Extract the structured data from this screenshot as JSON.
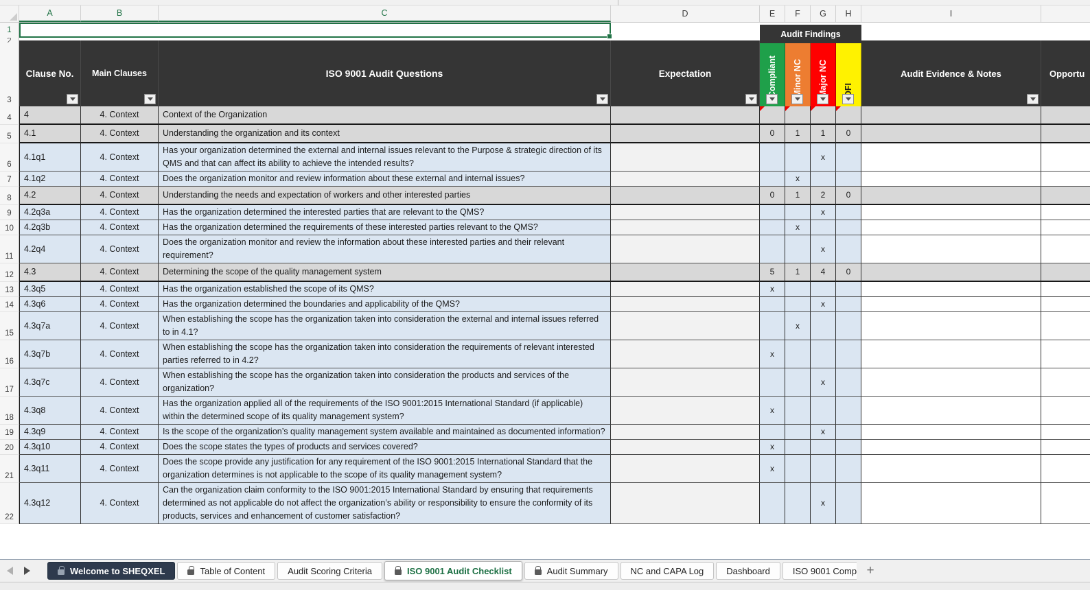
{
  "columns": {
    "letters": [
      "A",
      "B",
      "C",
      "D",
      "E",
      "F",
      "G",
      "H",
      "I"
    ],
    "selected_letters": [
      "A",
      "B",
      "C"
    ]
  },
  "gutter": {
    "row1": "1",
    "row2": "2",
    "row3": "3"
  },
  "header": {
    "clause_no": "Clause No.",
    "main_clauses": "Main Clauses",
    "questions": "ISO 9001 Audit Questions",
    "expectation": "Expectation",
    "audit_findings": "Audit Findings",
    "findings_cols": [
      {
        "label": "Compliant",
        "color": "#1FA04A",
        "text_color": "#ffffff"
      },
      {
        "label": "Minor NC",
        "color": "#ED7D31",
        "text_color": "#ffffff"
      },
      {
        "label": "Major NC",
        "color": "#FF0000",
        "text_color": "#ffffff"
      },
      {
        "label": "OFI",
        "color": "#FFF200",
        "text_color": "#1a1a1a"
      }
    ],
    "evidence": "Audit Evidence & Notes",
    "opportunity": "Opportu"
  },
  "colors": {
    "excel_green": "#217346",
    "header_bg": "#353535",
    "section_row_bg": "#d8d8d8",
    "question_row_bg": "#dbe6f2",
    "active_sheet_tab_bg": "#2e3a4d"
  },
  "rows": [
    {
      "n": "4",
      "type": "section",
      "clause": "4",
      "main": "4. Context",
      "text": "Context of the Organization",
      "e": "",
      "f": "",
      "g": "",
      "h": "",
      "marks": true
    },
    {
      "n": "5",
      "type": "section",
      "clause": "4.1",
      "main": "4. Context",
      "text": "Understanding the organization and its context",
      "e": "0",
      "f": "1",
      "g": "1",
      "h": "0"
    },
    {
      "n": "6",
      "type": "question",
      "clause": "4.1q1",
      "main": "4. Context",
      "text": "Has your organization determined the external and internal issues relevant to the Purpose & strategic direction of its QMS and that can affect its ability to achieve the intended results?",
      "e": "",
      "f": "",
      "g": "x",
      "h": ""
    },
    {
      "n": "7",
      "type": "question",
      "clause": "4.1q2",
      "main": "4. Context",
      "text": "Does the organization monitor and review information about these external and internal issues?",
      "e": "",
      "f": "x",
      "g": "",
      "h": ""
    },
    {
      "n": "8",
      "type": "section",
      "clause": "4.2",
      "main": "4. Context",
      "text": "Understanding the needs and expectation of workers and other interested parties",
      "e": "0",
      "f": "1",
      "g": "2",
      "h": "0"
    },
    {
      "n": "9",
      "type": "question",
      "clause": "4.2q3a",
      "main": "4. Context",
      "text": "Has the organization determined the interested parties that are relevant to the QMS?",
      "e": "",
      "f": "",
      "g": "x",
      "h": ""
    },
    {
      "n": "10",
      "type": "question",
      "clause": "4.2q3b",
      "main": "4. Context",
      "text": "Has the organization determined the requirements of these interested parties relevant to the QMS?",
      "e": "",
      "f": "x",
      "g": "",
      "h": ""
    },
    {
      "n": "11",
      "type": "question",
      "clause": "4.2q4",
      "main": "4. Context",
      "text": "Does the organization monitor and review the information about these interested parties and their relevant requirement?",
      "e": "",
      "f": "",
      "g": "x",
      "h": ""
    },
    {
      "n": "12",
      "type": "section",
      "clause": "4.3",
      "main": "4. Context",
      "text": "Determining the scope of the quality management system",
      "e": "5",
      "f": "1",
      "g": "4",
      "h": "0"
    },
    {
      "n": "13",
      "type": "question",
      "clause": "4.3q5",
      "main": "4. Context",
      "text": "Has the organization established the scope of its QMS?",
      "e": "x",
      "f": "",
      "g": "",
      "h": ""
    },
    {
      "n": "14",
      "type": "question",
      "clause": "4.3q6",
      "main": "4. Context",
      "text": "Has the organization determined the boundaries and applicability of the QMS?",
      "e": "",
      "f": "",
      "g": "x",
      "h": ""
    },
    {
      "n": "15",
      "type": "question",
      "clause": "4.3q7a",
      "main": "4. Context",
      "text": "When establishing the scope has the organization taken into consideration the external and internal issues referred to in 4.1?",
      "e": "",
      "f": "x",
      "g": "",
      "h": ""
    },
    {
      "n": "16",
      "type": "question",
      "clause": "4.3q7b",
      "main": "4. Context",
      "text": "When establishing the scope has the organization taken into consideration the requirements of relevant interested parties referred to in 4.2?",
      "e": "x",
      "f": "",
      "g": "",
      "h": ""
    },
    {
      "n": "17",
      "type": "question",
      "clause": "4.3q7c",
      "main": "4. Context",
      "text": "When establishing the scope has the organization taken into consideration the products and services of the organization?",
      "e": "",
      "f": "",
      "g": "x",
      "h": ""
    },
    {
      "n": "18",
      "type": "question",
      "clause": "4.3q8",
      "main": "4. Context",
      "text": "Has the organization applied all of the requirements of the ISO 9001:2015 International Standard (if applicable) within the determined scope of its quality management system?",
      "e": "x",
      "f": "",
      "g": "",
      "h": ""
    },
    {
      "n": "19",
      "type": "question",
      "clause": "4.3q9",
      "main": "4. Context",
      "text": "Is the scope of the organization’s quality management system available and maintained as documented information?",
      "e": "",
      "f": "",
      "g": "x",
      "h": ""
    },
    {
      "n": "20",
      "type": "question",
      "clause": "4.3q10",
      "main": "4. Context",
      "text": "Does the scope states the types of products and services covered?",
      "e": "x",
      "f": "",
      "g": "",
      "h": ""
    },
    {
      "n": "21",
      "type": "question",
      "clause": "4.3q11",
      "main": "4. Context",
      "text": "Does the scope provide any justification for any requirement of the ISO 9001:2015 International Standard that the organization determines is not applicable to the scope of its quality management system?",
      "e": "x",
      "f": "",
      "g": "",
      "h": ""
    },
    {
      "n": "22",
      "type": "question",
      "clause": "4.3q12",
      "main": "4. Context",
      "text": "Can the organization claim conformity to the ISO 9001:2015 International Standard by ensuring that requirements determined as not applicable do not affect the organization’s ability or responsibility to ensure the conformity of its products, services and enhancement of customer satisfaction?",
      "e": "",
      "f": "",
      "g": "x",
      "h": ""
    }
  ],
  "tabs": [
    {
      "label": "Welcome to SHEQXEL",
      "style": "dark",
      "locked": true
    },
    {
      "label": "Table of Content",
      "style": "normal",
      "locked": true
    },
    {
      "label": "Audit Scoring Criteria",
      "style": "normal",
      "locked": false
    },
    {
      "label": "ISO 9001 Audit Checklist",
      "style": "active",
      "locked": true
    },
    {
      "label": "Audit Summary",
      "style": "normal",
      "locked": true
    },
    {
      "label": "NC and CAPA Log",
      "style": "normal",
      "locked": false
    },
    {
      "label": "Dashboard",
      "style": "normal",
      "locked": false
    },
    {
      "label": "ISO 9001 Comp",
      "style": "normal",
      "locked": false,
      "clipped": true
    }
  ],
  "tabbar": {
    "add_sheet_label": "+"
  }
}
